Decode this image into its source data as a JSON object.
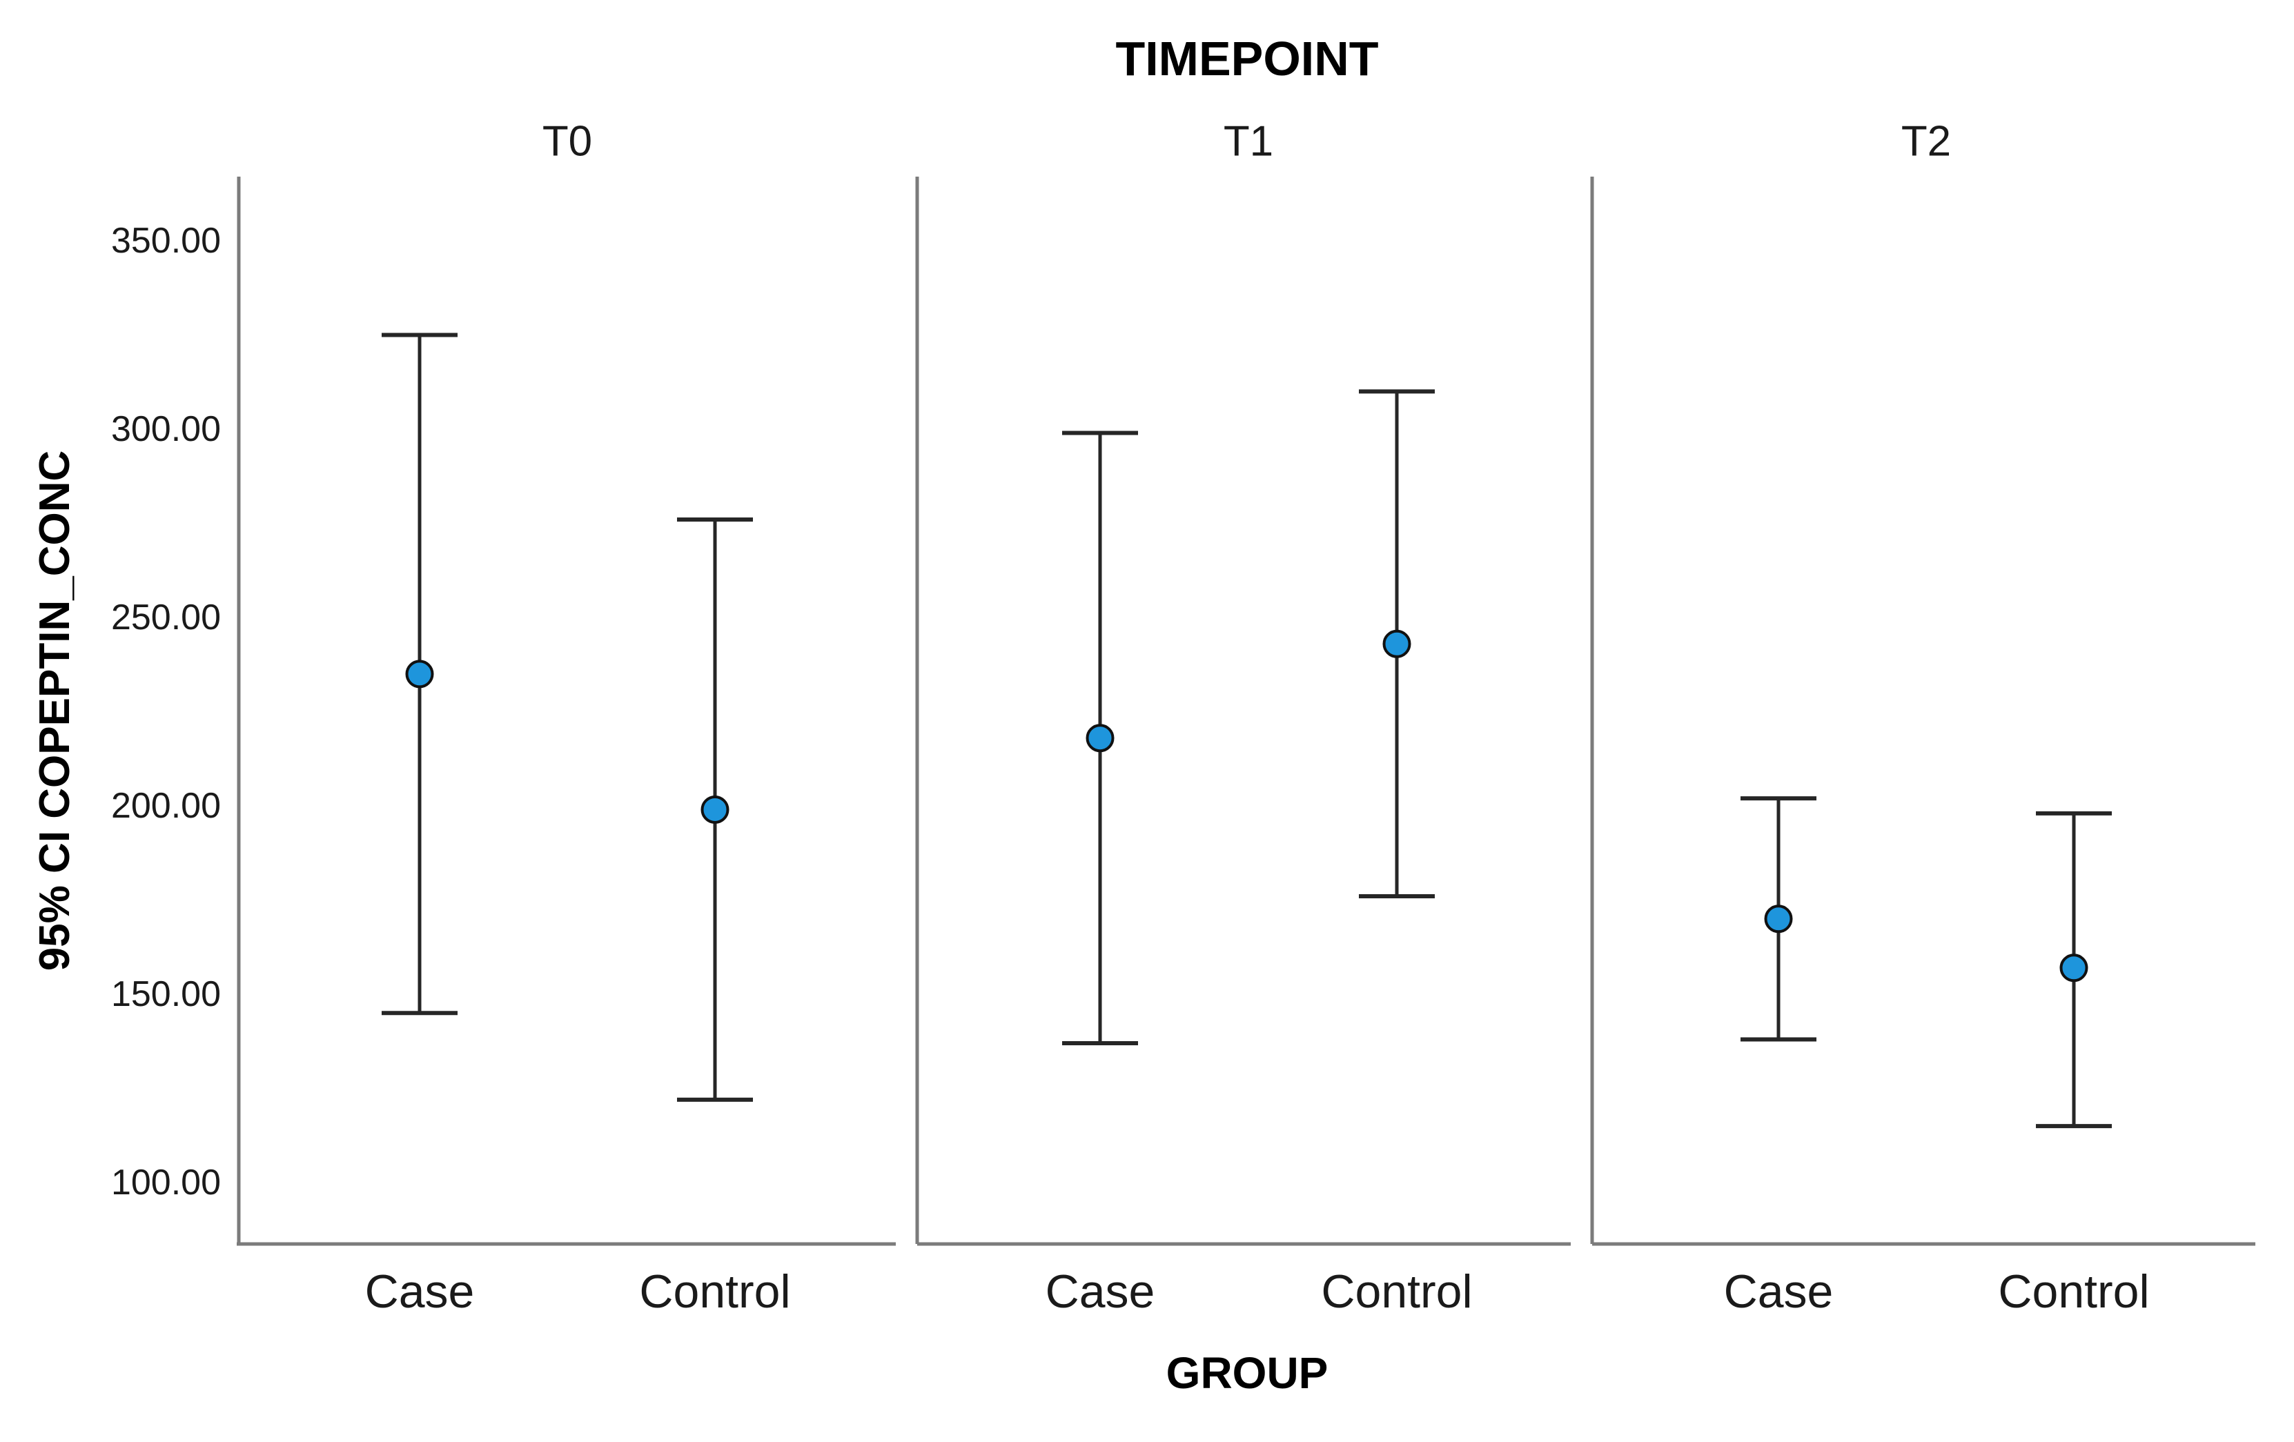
{
  "chart_data": {
    "type": "errorbar",
    "title": "TIMEPOINT",
    "xlabel": "GROUP",
    "ylabel": "95% CI COPEPTIN_CONC",
    "ylim": [
      100,
      350
    ],
    "yticks": [
      {
        "value": 350,
        "label": "350.00"
      },
      {
        "value": 300,
        "label": "300.00"
      },
      {
        "value": 250,
        "label": "250.00"
      },
      {
        "value": 200,
        "label": "200.00"
      },
      {
        "value": 150,
        "label": "150.00"
      },
      {
        "value": 100,
        "label": "100.00"
      }
    ],
    "categories": [
      "Case",
      "Control"
    ],
    "panels": [
      {
        "label": "T0",
        "points": [
          {
            "group": "Case",
            "mean": 235,
            "ci_low": 145,
            "ci_high": 325
          },
          {
            "group": "Control",
            "mean": 199,
            "ci_low": 122,
            "ci_high": 276
          }
        ]
      },
      {
        "label": "T1",
        "points": [
          {
            "group": "Case",
            "mean": 218,
            "ci_low": 137,
            "ci_high": 299
          },
          {
            "group": "Control",
            "mean": 243,
            "ci_low": 176,
            "ci_high": 310
          }
        ]
      },
      {
        "label": "T2",
        "points": [
          {
            "group": "Case",
            "mean": 170,
            "ci_low": 138,
            "ci_high": 202
          },
          {
            "group": "Control",
            "mean": 157,
            "ci_low": 115,
            "ci_high": 198
          }
        ]
      }
    ],
    "legend": "none",
    "grid": false,
    "colors": {
      "marker_fill": "#1e95dc",
      "marker_outline": "#111111",
      "error_bar": "#262626",
      "axis_line": "#7b7b7b",
      "text": "#1a1a1a"
    }
  }
}
